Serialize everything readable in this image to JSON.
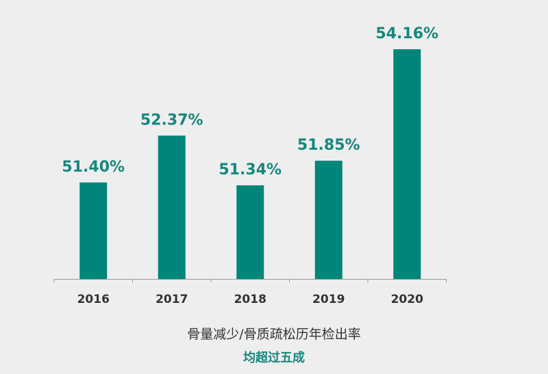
{
  "chart_data": {
    "type": "bar",
    "categories": [
      "2016",
      "2017",
      "2018",
      "2019",
      "2020"
    ],
    "values": [
      51.4,
      52.37,
      51.34,
      51.85,
      54.16
    ],
    "value_labels": [
      "51.40%",
      "52.37%",
      "51.34%",
      "51.85%",
      "54.16%"
    ],
    "unit": "%",
    "title": "",
    "xlabel": "",
    "ylabel": "",
    "ylim": [
      49.4,
      54.16
    ],
    "y_axis_visible": false,
    "grid": false,
    "legend": "none",
    "bar_color": "#00857a",
    "label_color": "#17877d"
  },
  "captions": {
    "description": "骨量减少/骨质疏松历年检出率",
    "highlight": "均超过五成"
  },
  "colors": {
    "background": "#eeeeee",
    "axis": "#9a9a9a",
    "tick_label": "#333333",
    "highlight": "#17877d"
  }
}
